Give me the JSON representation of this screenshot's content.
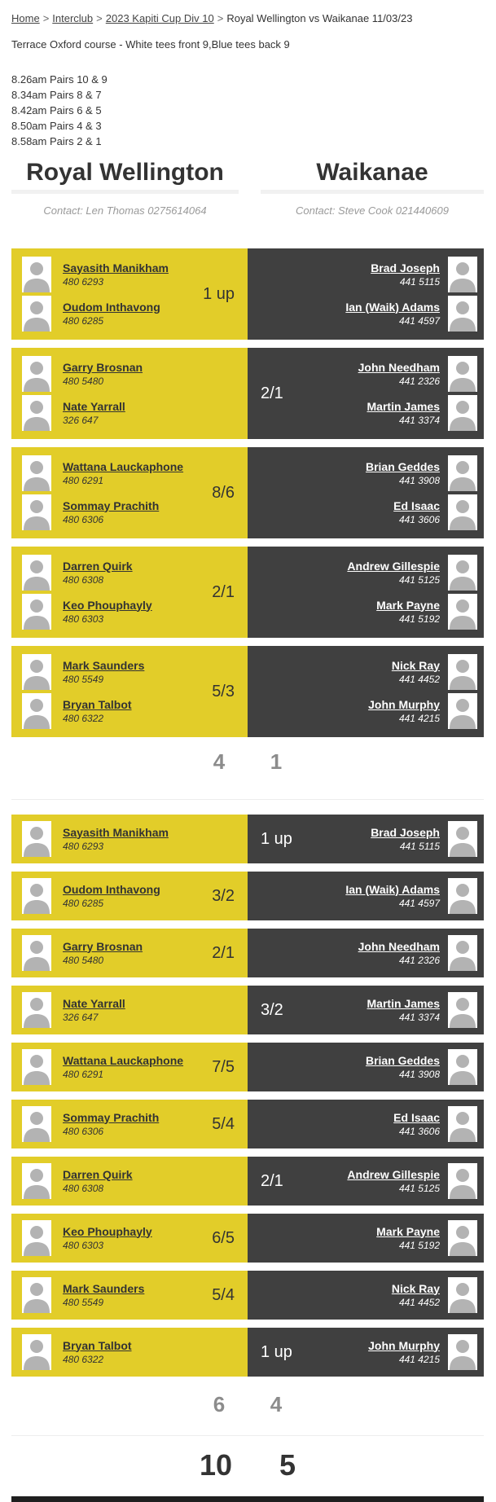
{
  "breadcrumb": {
    "separator": ">",
    "items": [
      {
        "label": "Home",
        "link": true
      },
      {
        "label": "Interclub",
        "link": true
      },
      {
        "label": "2023 Kapiti Cup Div 10",
        "link": true
      },
      {
        "label": "Royal Wellington vs Waikanae 11/03/23",
        "link": false
      }
    ]
  },
  "course_info": "Terrace Oxford course - White tees front 9,Blue tees back 9",
  "tee_times": [
    "8.26am Pairs 10 & 9",
    "8.34am Pairs 8 & 7",
    "8.42am Pairs 6 & 5",
    "8.50am Pairs 4 & 3",
    "8.58am Pairs 2 & 1"
  ],
  "teams": {
    "home": {
      "name": "Royal Wellington",
      "contact": "Contact: Len Thomas 0275614064"
    },
    "away": {
      "name": "Waikanae",
      "contact": "Contact: Steve Cook 021440609"
    }
  },
  "colors": {
    "home": "#e2cd29",
    "away": "#404040"
  },
  "pairs_matches": [
    {
      "home_players": [
        {
          "name": "Sayasith Manikham",
          "number": "480 6293"
        },
        {
          "name": "Oudom Inthavong",
          "number": "480 6285"
        }
      ],
      "away_players": [
        {
          "name": "Brad Joseph",
          "number": "441 5115"
        },
        {
          "name": "Ian (Waik) Adams",
          "number": "441 4597"
        }
      ],
      "result": "1 up",
      "winner": "home"
    },
    {
      "home_players": [
        {
          "name": "Garry Brosnan",
          "number": "480 5480"
        },
        {
          "name": "Nate Yarrall",
          "number": "326 647"
        }
      ],
      "away_players": [
        {
          "name": "John Needham",
          "number": "441 2326"
        },
        {
          "name": "Martin James",
          "number": "441 3374"
        }
      ],
      "result": "2/1",
      "winner": "away"
    },
    {
      "home_players": [
        {
          "name": "Wattana Lauckaphone",
          "number": "480 6291"
        },
        {
          "name": "Sommay Prachith",
          "number": "480 6306"
        }
      ],
      "away_players": [
        {
          "name": "Brian Geddes",
          "number": "441 3908"
        },
        {
          "name": "Ed Isaac",
          "number": "441 3606"
        }
      ],
      "result": "8/6",
      "winner": "home"
    },
    {
      "home_players": [
        {
          "name": "Darren Quirk",
          "number": "480 6308"
        },
        {
          "name": "Keo Phouphayly",
          "number": "480 6303"
        }
      ],
      "away_players": [
        {
          "name": "Andrew Gillespie",
          "number": "441 5125"
        },
        {
          "name": "Mark Payne",
          "number": "441 5192"
        }
      ],
      "result": "2/1",
      "winner": "home"
    },
    {
      "home_players": [
        {
          "name": "Mark Saunders",
          "number": "480 5549"
        },
        {
          "name": "Bryan Talbot",
          "number": "480 6322"
        }
      ],
      "away_players": [
        {
          "name": "Nick Ray",
          "number": "441 4452"
        },
        {
          "name": "John Murphy",
          "number": "441 4215"
        }
      ],
      "result": "5/3",
      "winner": "home"
    }
  ],
  "pairs_totals": {
    "home": "4",
    "away": "1"
  },
  "singles_matches": [
    {
      "home_player": {
        "name": "Sayasith Manikham",
        "number": "480 6293"
      },
      "away_player": {
        "name": "Brad Joseph",
        "number": "441 5115"
      },
      "result": "1 up",
      "winner": "away"
    },
    {
      "home_player": {
        "name": "Oudom Inthavong",
        "number": "480 6285"
      },
      "away_player": {
        "name": "Ian (Waik) Adams",
        "number": "441 4597"
      },
      "result": "3/2",
      "winner": "home"
    },
    {
      "home_player": {
        "name": "Garry Brosnan",
        "number": "480 5480"
      },
      "away_player": {
        "name": "John Needham",
        "number": "441 2326"
      },
      "result": "2/1",
      "winner": "home"
    },
    {
      "home_player": {
        "name": "Nate Yarrall",
        "number": "326 647"
      },
      "away_player": {
        "name": "Martin James",
        "number": "441 3374"
      },
      "result": "3/2",
      "winner": "away"
    },
    {
      "home_player": {
        "name": "Wattana Lauckaphone",
        "number": "480 6291"
      },
      "away_player": {
        "name": "Brian Geddes",
        "number": "441 3908"
      },
      "result": "7/5",
      "winner": "home"
    },
    {
      "home_player": {
        "name": "Sommay Prachith",
        "number": "480 6306"
      },
      "away_player": {
        "name": "Ed Isaac",
        "number": "441 3606"
      },
      "result": "5/4",
      "winner": "home"
    },
    {
      "home_player": {
        "name": "Darren Quirk",
        "number": "480 6308"
      },
      "away_player": {
        "name": "Andrew Gillespie",
        "number": "441 5125"
      },
      "result": "2/1",
      "winner": "away"
    },
    {
      "home_player": {
        "name": "Keo Phouphayly",
        "number": "480 6303"
      },
      "away_player": {
        "name": "Mark Payne",
        "number": "441 5192"
      },
      "result": "6/5",
      "winner": "home"
    },
    {
      "home_player": {
        "name": "Mark Saunders",
        "number": "480 5549"
      },
      "away_player": {
        "name": "Nick Ray",
        "number": "441 4452"
      },
      "result": "5/4",
      "winner": "home"
    },
    {
      "home_player": {
        "name": "Bryan Talbot",
        "number": "480 6322"
      },
      "away_player": {
        "name": "John Murphy",
        "number": "441 4215"
      },
      "result": "1 up",
      "winner": "away"
    }
  ],
  "singles_totals": {
    "home": "6",
    "away": "4"
  },
  "grand_totals": {
    "home": "10",
    "away": "5"
  }
}
